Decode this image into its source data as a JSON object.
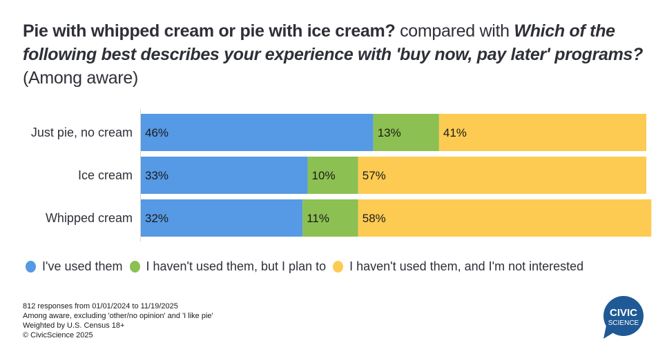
{
  "title": {
    "part1_bold": "Pie with whipped cream or pie with ice cream?",
    "part2_normal": " compared with ",
    "part3_bold_italic": "Which of the following best describes your experience with 'buy now, pay later' programs?",
    "part4_normal": " (Among aware)"
  },
  "chart_data": {
    "type": "bar",
    "orientation": "horizontal",
    "stacked": true,
    "normalized_percent": true,
    "categories": [
      "Just pie, no cream",
      "Ice cream",
      "Whipped cream"
    ],
    "series": [
      {
        "name": "I've used them",
        "color": "#5699E4",
        "values": [
          46,
          33,
          32
        ]
      },
      {
        "name": "I haven't used them, but I plan to",
        "color": "#8CC052",
        "values": [
          13,
          10,
          11
        ]
      },
      {
        "name": "I haven't used them, and I'm not interested",
        "color": "#FDCB52",
        "values": [
          41,
          57,
          58
        ]
      }
    ],
    "value_labels": [
      [
        "46%",
        "13%",
        "41%"
      ],
      [
        "33%",
        "10%",
        "57%"
      ],
      [
        "32%",
        "11%",
        "58%"
      ]
    ],
    "xlim": [
      0,
      100
    ],
    "grid": false,
    "legend_position": "bottom"
  },
  "legend": [
    {
      "label": "I've used them",
      "color": "#5699E4"
    },
    {
      "label": "I haven't used them, but I plan to",
      "color": "#8CC052"
    },
    {
      "label": "I haven't used them, and I'm not interested",
      "color": "#FDCB52"
    }
  ],
  "footer": {
    "line1": "812 responses from 01/01/2024 to 11/19/2025",
    "line2": "Among aware, excluding 'other/no opinion' and 'I like pie'",
    "line3": "Weighted by U.S. Census 18+",
    "line4": "© CivicScience 2025"
  },
  "logo": {
    "line1": "CIVIC",
    "line2": "SCIENCE",
    "color": "#1f5a96"
  }
}
